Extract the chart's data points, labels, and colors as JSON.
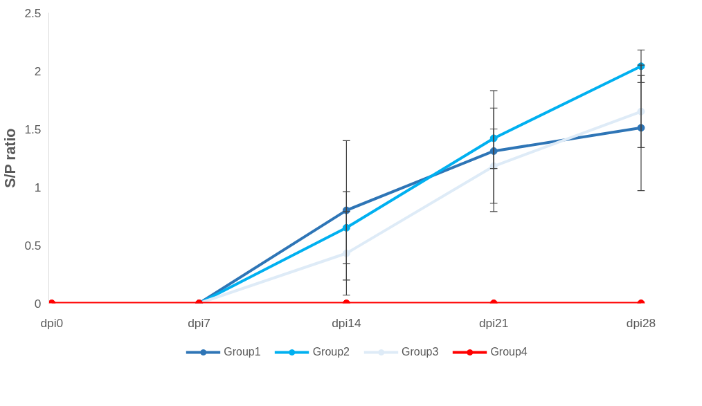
{
  "chart_data": {
    "type": "line",
    "ylabel": "S/P ratio",
    "categories": [
      "dpi0",
      "dpi7",
      "dpi14",
      "dpi21",
      "dpi28"
    ],
    "series": [
      {
        "name": "Group1",
        "color": "#2e75b6",
        "values": [
          null,
          0,
          0.8,
          1.31,
          1.51
        ],
        "errors": [
          null,
          null,
          0.6,
          0.52,
          0.54
        ]
      },
      {
        "name": "Group2",
        "color": "#00b0f0",
        "values": [
          null,
          0,
          0.65,
          1.42,
          2.04
        ],
        "errors": [
          null,
          null,
          0.31,
          0.26,
          0.14
        ]
      },
      {
        "name": "Group3",
        "color": "#deebf7",
        "values": [
          null,
          0,
          0.43,
          1.18,
          1.65
        ],
        "errors": [
          null,
          null,
          0.36,
          0.32,
          0.31
        ]
      },
      {
        "name": "Group4",
        "color": "#ff0000",
        "values": [
          0,
          0,
          0,
          0,
          0
        ]
      }
    ],
    "ylim": [
      0,
      2.5
    ],
    "yticks": [
      0,
      0.5,
      1,
      1.5,
      2,
      2.5
    ],
    "grid": false,
    "legend": "bottom",
    "marker": "circle",
    "line_style": "solid"
  }
}
